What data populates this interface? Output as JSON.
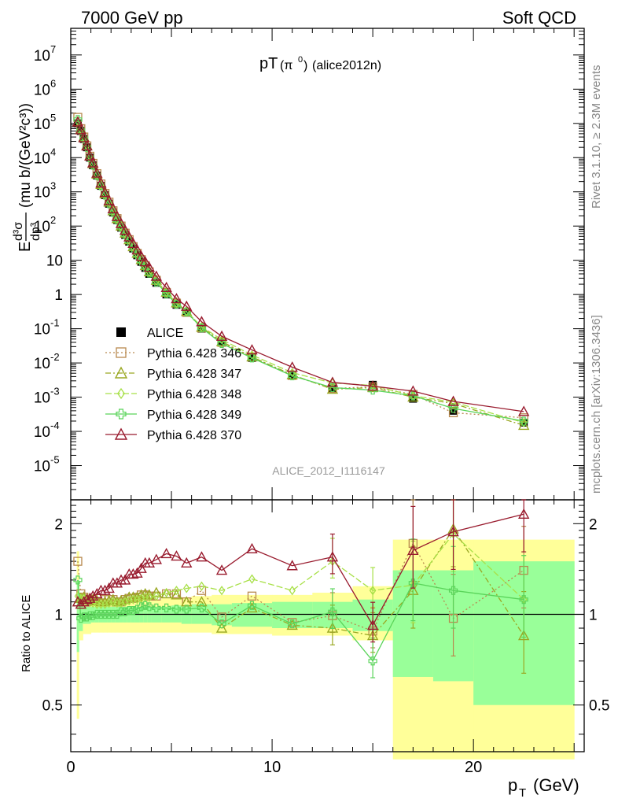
{
  "header": {
    "left": "7000 GeV pp",
    "right": "Soft QCD"
  },
  "side": {
    "rivet": "Rivet 3.1.10, ≥ 2.3M events",
    "mcplots": "mcplots.cern.ch [arXiv:1306.3436]"
  },
  "plot": {
    "title_main": "pT",
    "title_particle": "(π",
    "title_sup": "0",
    "title_close": ")",
    "title_tag": "(alice2012n)",
    "analysis": "ALICE_2012_I1116147"
  },
  "axes": {
    "y_top_prefix": "E",
    "y_top_num": "d³σ",
    "y_top_den": "dp³",
    "y_top_units": "(mu b/(GeV²c³))",
    "y_bottom_label": "Ratio to ALICE",
    "x_label": "p",
    "x_label_sub": "T",
    "x_label_units": "(GeV)"
  },
  "chart_data": [
    {
      "type": "scatter",
      "panel": "spectrum",
      "yscale": "log",
      "xlim": [
        0,
        25.5
      ],
      "ylim": [
        1e-06,
        60000000
      ],
      "x_ticks": [
        0,
        10,
        20
      ],
      "y_tick_labels": [
        "10^{-5}",
        "10^{-4}",
        "10^{-3}",
        "10^{-2}",
        "10^{-1}",
        "1",
        "10",
        "10^{2}",
        "10^{3}",
        "10^{4}",
        "10^{5}",
        "10^{6}",
        "10^{7}"
      ],
      "y_tick_values": [
        1e-05,
        0.0001,
        0.001,
        0.01,
        0.1,
        1,
        10,
        100,
        1000,
        10000,
        100000,
        1000000,
        10000000
      ],
      "x": [
        0.35,
        0.5,
        0.65,
        0.8,
        0.95,
        1.1,
        1.3,
        1.5,
        1.7,
        1.9,
        2.1,
        2.3,
        2.5,
        2.7,
        2.9,
        3.1,
        3.3,
        3.5,
        3.7,
        3.9,
        4.25,
        4.75,
        5.25,
        5.75,
        6.5,
        7.5,
        9.0,
        11.0,
        13.0,
        15.0,
        17.0,
        19.0,
        22.5
      ],
      "legend_position": "middle-left",
      "series": [
        {
          "name": "ALICE",
          "color": "#000000",
          "marker": "square-filled",
          "values": [
            100000,
            60000,
            35000,
            20000,
            10000,
            6000,
            3000,
            1500,
            800,
            450,
            250,
            150,
            90,
            55,
            35,
            22,
            14,
            9,
            6,
            4,
            2.2,
            1.0,
            0.5,
            0.3,
            0.1,
            0.04,
            0.014,
            0.0045,
            0.0018,
            0.0023,
            0.0009,
            0.0004,
            0.00018
          ]
        },
        {
          "name": "Pythia 6.428 346",
          "color": "#b8894f",
          "marker": "square-open",
          "values": [
            150000,
            70000,
            40000,
            22000,
            11000,
            6800,
            3400,
            1700,
            900,
            500,
            280,
            165,
            100,
            62,
            40,
            25,
            16,
            10.5,
            7,
            4.6,
            2.6,
            1.15,
            0.56,
            0.3,
            0.105,
            0.04,
            0.015,
            0.0043,
            0.0018,
            0.002,
            0.0012,
            0.00035,
            0.00025
          ]
        },
        {
          "name": "Pythia 6.428 347",
          "color": "#9aa823",
          "marker": "triangle-open",
          "values": [
            110000,
            68000,
            40000,
            22500,
            11200,
            6700,
            3300,
            1650,
            880,
            500,
            280,
            165,
            100,
            62,
            40,
            25,
            16,
            10.5,
            7,
            4.6,
            2.6,
            1.17,
            0.57,
            0.32,
            0.11,
            0.042,
            0.015,
            0.0045,
            0.0017,
            0.0019,
            0.001,
            0.00065,
            0.00015
          ]
        },
        {
          "name": "Pythia 6.428 348",
          "color": "#a8e048",
          "marker": "diamond-open",
          "values": [
            115000,
            68000,
            39000,
            22000,
            11000,
            6500,
            3200,
            1600,
            860,
            490,
            275,
            162,
            98,
            60,
            39,
            24.5,
            15.5,
            10.2,
            6.8,
            4.5,
            2.5,
            1.15,
            0.56,
            0.32,
            0.115,
            0.048,
            0.017,
            0.0052,
            0.0026,
            0.0022,
            0.0011,
            0.00072,
            0.00018
          ]
        },
        {
          "name": "Pythia 6.428 349",
          "color": "#5ad45a",
          "marker": "cross-open",
          "values": [
            130000,
            62000,
            36000,
            20000,
            10000,
            6000,
            3000,
            1500,
            800,
            450,
            250,
            150,
            92,
            56,
            36,
            23,
            14.5,
            9.5,
            6.4,
            4.2,
            2.3,
            1.05,
            0.52,
            0.31,
            0.105,
            0.037,
            0.014,
            0.0042,
            0.0019,
            0.0016,
            0.0011,
            0.00047,
            0.0002
          ]
        },
        {
          "name": "Pythia 6.428 370",
          "color": "#991b2e",
          "marker": "triangle-open",
          "values": [
            110000,
            65000,
            38000,
            22000,
            11200,
            7000,
            3500,
            1800,
            950,
            550,
            320,
            190,
            118,
            75,
            48,
            31,
            20,
            13,
            9,
            6.2,
            3.4,
            1.6,
            0.75,
            0.45,
            0.16,
            0.06,
            0.024,
            0.0075,
            0.0027,
            0.0021,
            0.0015,
            0.00075,
            0.00038
          ]
        }
      ]
    },
    {
      "type": "line",
      "panel": "ratio",
      "yscale": "log",
      "ylim": [
        0.35,
        2.4
      ],
      "y_tick_labels": [
        "0.5",
        "1",
        "2"
      ],
      "y_tick_values": [
        0.5,
        1,
        2
      ],
      "x": [
        0.35,
        0.5,
        0.65,
        0.8,
        0.95,
        1.1,
        1.3,
        1.5,
        1.7,
        1.9,
        2.1,
        2.3,
        2.5,
        2.7,
        2.9,
        3.1,
        3.3,
        3.5,
        3.7,
        3.9,
        4.25,
        4.75,
        5.25,
        5.75,
        6.5,
        7.5,
        9.0,
        11.0,
        13.0,
        15.0,
        17.0,
        19.0,
        22.5
      ],
      "bands": {
        "edges": [
          0.3,
          0.4,
          0.6,
          0.8,
          1,
          1.2,
          1.4,
          1.6,
          1.8,
          2,
          2.2,
          2.4,
          2.6,
          2.8,
          3,
          3.2,
          3.4,
          3.6,
          3.8,
          4,
          4.5,
          5,
          5.5,
          6,
          7,
          8,
          10,
          12,
          14,
          16,
          18,
          20,
          25
        ],
        "yellow_lo": [
          0.45,
          0.82,
          0.86,
          0.86,
          0.87,
          0.87,
          0.87,
          0.87,
          0.87,
          0.87,
          0.87,
          0.87,
          0.87,
          0.87,
          0.87,
          0.87,
          0.87,
          0.87,
          0.87,
          0.87,
          0.87,
          0.87,
          0.87,
          0.87,
          0.86,
          0.86,
          0.85,
          0.85,
          0.82,
          0.33,
          0.33,
          0.33,
          0.33
        ],
        "yellow_hi": [
          1.62,
          1.18,
          1.12,
          1.12,
          1.12,
          1.12,
          1.12,
          1.12,
          1.12,
          1.12,
          1.12,
          1.12,
          1.12,
          1.12,
          1.12,
          1.12,
          1.12,
          1.12,
          1.12,
          1.12,
          1.13,
          1.14,
          1.14,
          1.15,
          1.16,
          1.16,
          1.16,
          1.18,
          1.24,
          1.77,
          1.77,
          1.77,
          1.77
        ],
        "green_lo": [
          0.75,
          0.88,
          0.93,
          0.93,
          0.94,
          0.94,
          0.94,
          0.94,
          0.94,
          0.94,
          0.94,
          0.94,
          0.94,
          0.94,
          0.94,
          0.94,
          0.94,
          0.94,
          0.94,
          0.94,
          0.94,
          0.94,
          0.93,
          0.93,
          0.92,
          0.91,
          0.9,
          0.9,
          0.88,
          0.62,
          0.6,
          0.5,
          0.64
        ],
        "green_hi": [
          1.3,
          1.1,
          1.06,
          1.06,
          1.06,
          1.06,
          1.06,
          1.06,
          1.06,
          1.06,
          1.06,
          1.06,
          1.06,
          1.06,
          1.06,
          1.06,
          1.06,
          1.06,
          1.06,
          1.06,
          1.06,
          1.07,
          1.07,
          1.08,
          1.08,
          1.09,
          1.1,
          1.1,
          1.12,
          1.4,
          1.4,
          1.5,
          1.45
        ]
      },
      "series": [
        {
          "name": "Pythia 6.428 346",
          "color": "#b8894f",
          "dash": "2,3",
          "values": [
            1.5,
            1.17,
            1.14,
            1.1,
            1.11,
            1.12,
            1.13,
            1.13,
            1.12,
            1.12,
            1.12,
            1.1,
            1.1,
            1.12,
            1.13,
            1.13,
            1.14,
            1.16,
            1.16,
            1.15,
            1.15,
            1.17,
            1.17,
            1.1,
            1.2,
            0.98,
            1.15,
            0.94,
            0.99,
            0.88,
            1.72,
            0.97,
            1.4
          ]
        },
        {
          "name": "Pythia 6.428 347",
          "color": "#9aa823",
          "dash": "7,3,2,3",
          "values": [
            1.1,
            1.13,
            1.14,
            1.12,
            1.12,
            1.12,
            1.11,
            1.1,
            1.1,
            1.11,
            1.12,
            1.1,
            1.11,
            1.12,
            1.14,
            1.14,
            1.14,
            1.16,
            1.17,
            1.16,
            1.18,
            1.17,
            1.16,
            1.1,
            1.1,
            0.9,
            1.05,
            0.92,
            0.9,
            0.85,
            1.2,
            1.92,
            0.85
          ]
        },
        {
          "name": "Pythia 6.428 348",
          "color": "#a8e048",
          "dash": "8,3",
          "values": [
            1.15,
            1.13,
            1.13,
            1.1,
            1.1,
            1.09,
            1.08,
            1.08,
            1.08,
            1.09,
            1.1,
            1.09,
            1.09,
            1.1,
            1.11,
            1.12,
            1.12,
            1.13,
            1.14,
            1.14,
            1.15,
            1.18,
            1.2,
            1.22,
            1.24,
            1.2,
            1.31,
            1.2,
            1.5,
            1.2,
            1.25,
            1.85,
            1.12
          ]
        },
        {
          "name": "Pythia 6.428 349",
          "color": "#5ad45a",
          "dash": "",
          "values": [
            1.3,
            0.97,
            0.98,
            0.98,
            0.99,
            0.99,
            1.0,
            1.0,
            1.0,
            1.0,
            1.0,
            1.0,
            1.02,
            1.02,
            1.03,
            1.03,
            1.04,
            1.06,
            1.07,
            1.06,
            1.05,
            1.05,
            1.04,
            1.04,
            1.05,
            0.93,
            1.07,
            0.93,
            1.02,
            0.7,
            1.27,
            1.2,
            1.12
          ]
        },
        {
          "name": "Pythia 6.428 370",
          "color": "#991b2e",
          "dash": "",
          "values": [
            1.1,
            1.08,
            1.1,
            1.12,
            1.13,
            1.15,
            1.17,
            1.2,
            1.2,
            1.22,
            1.27,
            1.27,
            1.3,
            1.3,
            1.36,
            1.36,
            1.37,
            1.42,
            1.48,
            1.48,
            1.52,
            1.59,
            1.56,
            1.48,
            1.55,
            1.4,
            1.65,
            1.45,
            1.55,
            0.92,
            1.63,
            1.88,
            2.15
          ]
        }
      ]
    }
  ]
}
